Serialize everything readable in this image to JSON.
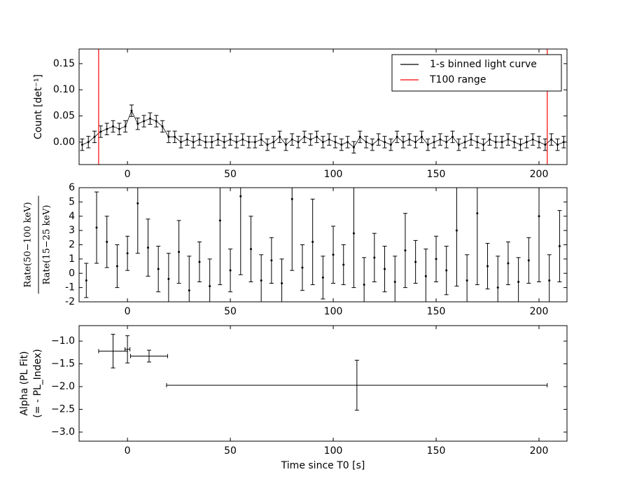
{
  "chart_data": [
    {
      "type": "errorbar",
      "ylabel": "Count [det⁻¹]",
      "xlim": [
        -23.5,
        213.6
      ],
      "xticks": [
        0,
        50,
        100,
        150,
        200
      ],
      "ylim": [
        -0.043,
        0.178
      ],
      "yticks": [
        {
          "value": 0,
          "label": "0.00"
        },
        {
          "value": 0.05,
          "label": "0.05"
        },
        {
          "value": 0.1,
          "label": "0.10"
        },
        {
          "value": 0.15,
          "label": "0.15"
        }
      ],
      "legend": "upper right",
      "series": [
        {
          "name": "1-s binned light curve",
          "color": "#000000",
          "x": [
            -22,
            -19,
            -16,
            -13,
            -10,
            -7,
            -4,
            -1,
            2,
            5,
            8,
            11,
            14,
            17,
            20,
            23,
            26,
            29,
            32,
            35,
            38,
            41,
            44,
            47,
            50,
            53,
            56,
            59,
            62,
            65,
            68,
            71,
            74,
            77,
            80,
            83,
            86,
            89,
            92,
            95,
            98,
            101,
            104,
            107,
            110,
            113,
            116,
            119,
            122,
            125,
            128,
            131,
            134,
            137,
            140,
            143,
            146,
            149,
            152,
            155,
            158,
            161,
            164,
            167,
            170,
            173,
            176,
            179,
            182,
            185,
            188,
            191,
            194,
            197,
            200,
            203,
            206,
            209,
            212
          ],
          "values": [
            -0.005,
            0,
            0.01,
            0.02,
            0.025,
            0.03,
            0.025,
            0.03,
            0.06,
            0.035,
            0.04,
            0.045,
            0.04,
            0.03,
            0.01,
            0.01,
            0,
            0.005,
            0,
            0.005,
            0,
            0,
            0.005,
            0,
            0.005,
            0,
            0.005,
            0,
            0,
            0.005,
            -0.005,
            0,
            0.01,
            -0.005,
            0.005,
            0,
            0.01,
            0.005,
            0.01,
            0,
            0.005,
            0,
            -0.005,
            0,
            -0.01,
            0.01,
            0,
            -0.005,
            0.005,
            0,
            -0.005,
            0.01,
            0,
            0.005,
            0,
            0.01,
            -0.005,
            0,
            0.005,
            0,
            0.01,
            -0.005,
            0,
            0.005,
            0,
            -0.005,
            0.005,
            0,
            0,
            0.005,
            0,
            -0.005,
            0,
            0.005,
            0,
            -0.005,
            0.005,
            -0.005,
            0
          ],
          "yerr": 0.011
        }
      ],
      "vlines": {
        "name": "T100 range",
        "color": "#ff0000",
        "x": [
          -14,
          204
        ]
      }
    },
    {
      "type": "errorbar",
      "ylabel": [
        "Rate(50−100 keV)",
        "Rate(15−25 keV)"
      ],
      "xlim": [
        -23.5,
        213.6
      ],
      "xticks": [
        0,
        50,
        100,
        150,
        200
      ],
      "ylim": [
        -2,
        6
      ],
      "yticks": [
        -2,
        -1,
        0,
        1,
        2,
        3,
        4,
        5,
        6
      ],
      "series": [
        {
          "color": "#000000",
          "x": [
            -20,
            -15,
            -10,
            -5,
            0,
            5,
            10,
            15,
            20,
            25,
            30,
            35,
            40,
            45,
            50,
            55,
            60,
            65,
            70,
            75,
            80,
            85,
            90,
            95,
            100,
            105,
            110,
            115,
            120,
            125,
            130,
            135,
            140,
            145,
            150,
            155,
            160,
            165,
            170,
            175,
            180,
            185,
            190,
            195,
            200,
            205,
            210
          ],
          "values": [
            -0.5,
            3.2,
            2.2,
            0.5,
            1.4,
            4.9,
            1.8,
            0.3,
            -0.4,
            1.5,
            -1.2,
            0.8,
            -0.9,
            3.7,
            0.2,
            5.4,
            1.7,
            -0.5,
            0.9,
            -0.7,
            5.2,
            0.4,
            2.2,
            -0.3,
            1.3,
            0.6,
            2.8,
            -0.8,
            1.1,
            0.3,
            -0.6,
            1.6,
            0.8,
            -0.2,
            1.0,
            0.2,
            3.0,
            -0.5,
            4.2,
            0.5,
            -1.0,
            0.7,
            -0.6,
            0.9,
            4.0,
            -0.5,
            1.9
          ],
          "yerr": [
            1.2,
            2.5,
            1.8,
            1.5,
            1.2,
            3.5,
            2.0,
            1.6,
            1.8,
            2.2,
            2.4,
            1.4,
            1.9,
            4.5,
            1.5,
            5.5,
            2.3,
            1.8,
            1.6,
            1.7,
            5.0,
            1.6,
            3.0,
            1.5,
            2.0,
            1.4,
            3.8,
            1.9,
            1.7,
            1.6,
            1.8,
            2.6,
            1.5,
            1.9,
            1.6,
            1.7,
            3.9,
            1.8,
            5.0,
            1.6,
            2.2,
            1.5,
            1.7,
            1.6,
            4.6,
            1.8,
            2.5
          ]
        }
      ]
    },
    {
      "type": "errorbar",
      "ylabel": [
        "Alpha (PL Fit)",
        "(= - PL_Index)"
      ],
      "xlabel": "Time since T0 [s]",
      "xlim": [
        -23.5,
        213.6
      ],
      "xticks": [
        0,
        50,
        100,
        150,
        200
      ],
      "ylim": [
        -3.2,
        -0.66
      ],
      "yticks": [
        {
          "value": -1,
          "label": "−1.0"
        },
        {
          "value": -1.5,
          "label": "−1.5"
        },
        {
          "value": -2,
          "label": "−2.0"
        },
        {
          "value": -2.5,
          "label": "−2.5"
        },
        {
          "value": -3,
          "label": "−3.0"
        }
      ],
      "series": [
        {
          "color": "#000000",
          "x": [
            -7,
            0,
            10.5,
            111.5
          ],
          "xerr": [
            7,
            1.2,
            9,
            92.5
          ],
          "values": [
            -1.22,
            -1.18,
            -1.33,
            -1.97
          ],
          "yerr": [
            0.37,
            0.3,
            0.13,
            0.55
          ]
        }
      ]
    }
  ]
}
